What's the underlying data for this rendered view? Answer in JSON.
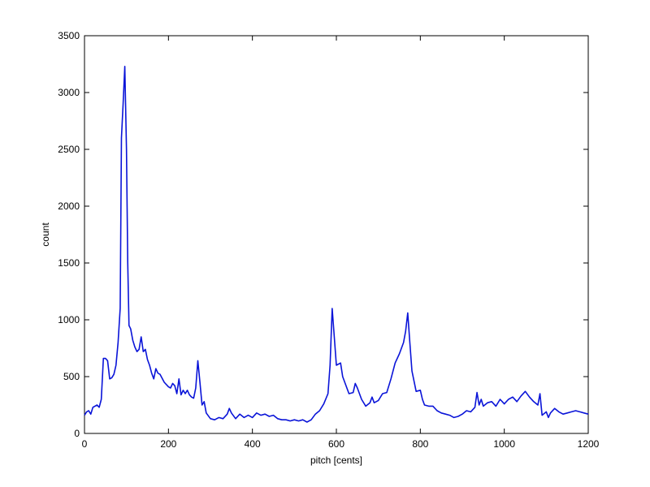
{
  "chart_data": {
    "type": "line",
    "xlabel": "pitch [cents]",
    "ylabel": "count",
    "color": "#0a14d8",
    "x": [
      0,
      5,
      10,
      15,
      20,
      30,
      35,
      40,
      45,
      50,
      55,
      60,
      65,
      70,
      75,
      80,
      85,
      88,
      92,
      96,
      100,
      103,
      106,
      110,
      115,
      120,
      125,
      130,
      135,
      140,
      145,
      150,
      155,
      160,
      165,
      170,
      175,
      180,
      190,
      200,
      205,
      210,
      215,
      220,
      225,
      230,
      235,
      240,
      245,
      250,
      255,
      260,
      265,
      270,
      275,
      280,
      285,
      290,
      300,
      310,
      320,
      330,
      340,
      345,
      350,
      360,
      370,
      380,
      390,
      400,
      410,
      420,
      430,
      440,
      450,
      460,
      470,
      480,
      490,
      500,
      510,
      520,
      530,
      540,
      550,
      560,
      570,
      580,
      585,
      590,
      595,
      600,
      610,
      615,
      620,
      630,
      640,
      645,
      650,
      660,
      670,
      680,
      685,
      690,
      700,
      710,
      720,
      730,
      740,
      750,
      760,
      765,
      770,
      775,
      780,
      790,
      800,
      805,
      810,
      820,
      830,
      840,
      850,
      860,
      870,
      880,
      890,
      900,
      910,
      920,
      930,
      935,
      940,
      945,
      950,
      960,
      970,
      980,
      990,
      1000,
      1010,
      1020,
      1030,
      1040,
      1050,
      1060,
      1070,
      1080,
      1085,
      1090,
      1100,
      1105,
      1110,
      1120,
      1130,
      1140,
      1150,
      1160,
      1170,
      1180,
      1190,
      1200
    ],
    "values": [
      160,
      190,
      200,
      170,
      230,
      250,
      230,
      300,
      660,
      660,
      640,
      480,
      490,
      520,
      600,
      800,
      1100,
      2600,
      2900,
      3230,
      2500,
      1500,
      950,
      920,
      820,
      760,
      720,
      740,
      850,
      720,
      740,
      650,
      600,
      530,
      480,
      570,
      530,
      520,
      450,
      410,
      400,
      440,
      420,
      350,
      480,
      340,
      380,
      350,
      380,
      340,
      320,
      310,
      400,
      640,
      450,
      250,
      280,
      180,
      130,
      120,
      140,
      130,
      170,
      220,
      180,
      130,
      170,
      140,
      160,
      140,
      180,
      160,
      170,
      150,
      160,
      130,
      120,
      120,
      110,
      120,
      110,
      120,
      100,
      120,
      170,
      200,
      260,
      350,
      600,
      1100,
      850,
      600,
      620,
      500,
      450,
      350,
      360,
      440,
      400,
      300,
      240,
      270,
      320,
      270,
      290,
      350,
      360,
      480,
      620,
      700,
      800,
      900,
      1060,
      800,
      550,
      370,
      380,
      300,
      250,
      240,
      240,
      200,
      180,
      170,
      160,
      140,
      150,
      170,
      200,
      190,
      230,
      360,
      250,
      300,
      240,
      270,
      280,
      240,
      300,
      260,
      300,
      320,
      280,
      330,
      370,
      320,
      280,
      250,
      350,
      160,
      190,
      140,
      180,
      220,
      190,
      170,
      180,
      190,
      200,
      190,
      180,
      170
    ],
    "xlim": [
      0,
      1200
    ],
    "xticks": [
      0,
      200,
      400,
      600,
      800,
      1000,
      1200
    ],
    "ylim": [
      0,
      3500
    ],
    "yticks": [
      0,
      500,
      1000,
      1500,
      2000,
      2500,
      3000,
      3500
    ],
    "grid": false
  }
}
